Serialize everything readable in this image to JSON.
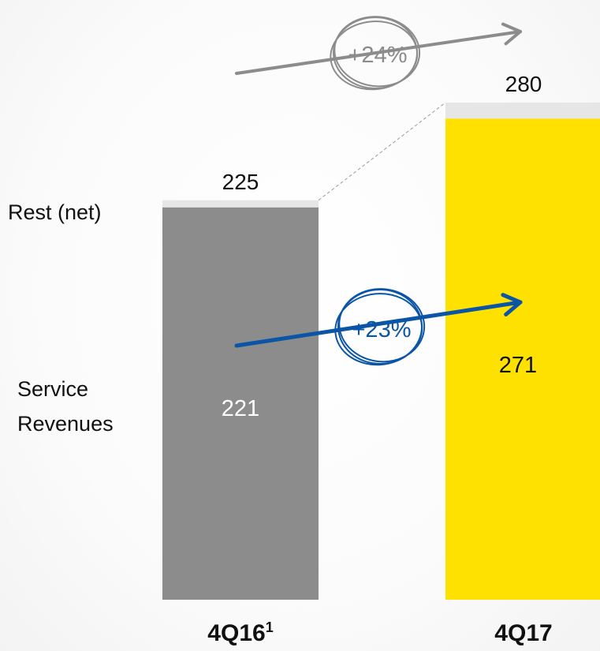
{
  "chart_data": {
    "type": "bar",
    "stacked": true,
    "categories": [
      "4Q16",
      "4Q17"
    ],
    "category_superscripts": [
      "1",
      ""
    ],
    "series": [
      {
        "name": "Service Revenues",
        "values": [
          221,
          271
        ],
        "display_labels": [
          "221",
          "271"
        ]
      },
      {
        "name": "Rest (net)",
        "values": [
          4,
          9
        ]
      }
    ],
    "totals": [
      225,
      280
    ],
    "total_labels": [
      "225",
      "280"
    ],
    "annotations": [
      {
        "text": "+24%",
        "from": "4Q16 total",
        "to": "4Q17 total"
      },
      {
        "text": "+23%",
        "from": "4Q16 Service Revenues",
        "to": "4Q17 Service Revenues"
      }
    ],
    "ylim": [
      0,
      280
    ],
    "colors": {
      "service_4q16": "#8c8c8c",
      "service_4q17": "#ffe100",
      "rest": "#e6e6e6",
      "growth_total": "#8c8c8c",
      "growth_service": "#0a55a5"
    }
  },
  "row_labels": {
    "rest": "Rest (net)",
    "service_line1": "Service",
    "service_line2": "Revenues"
  }
}
